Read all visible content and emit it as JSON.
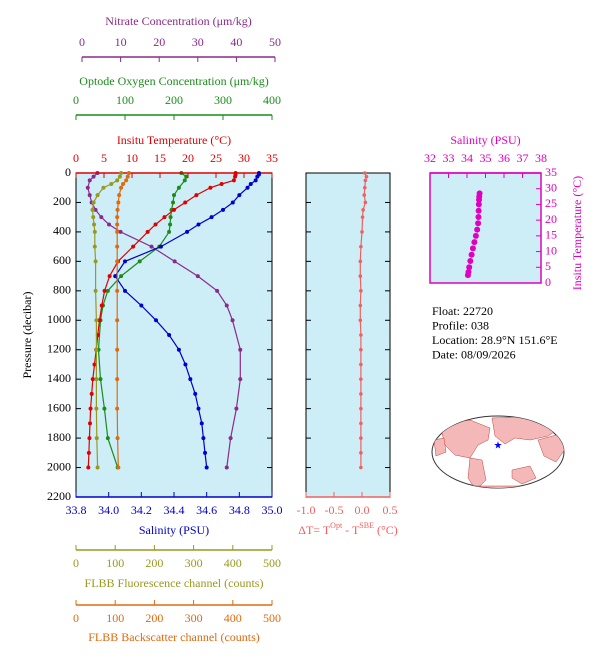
{
  "chart_data": [
    {
      "type": "profile",
      "ylabel": "Pressure (decibar)",
      "ylim": [
        0,
        2200
      ],
      "yticks": [
        0,
        200,
        400,
        600,
        800,
        1000,
        1200,
        1400,
        1600,
        1800,
        2000,
        2200
      ],
      "axes": [
        {
          "label": "Nitrate Concentration (μm/kg)",
          "color": "#8b2a8b",
          "xlim": [
            0,
            50
          ],
          "xticks": [
            0,
            10,
            20,
            30,
            40,
            50
          ],
          "pressure": [
            0,
            25,
            50,
            100,
            150,
            200,
            250,
            300,
            350,
            400,
            500,
            600,
            700,
            800,
            900,
            1000,
            1200,
            1400,
            1600,
            1800,
            2000
          ],
          "values": [
            4,
            3,
            2,
            1.5,
            2,
            2.5,
            3.5,
            5,
            7,
            10,
            18,
            24,
            30,
            35,
            37.5,
            39,
            41,
            41,
            40,
            38.5,
            37.5
          ]
        },
        {
          "label": "Optode Oxygen Concentration (μm/kg)",
          "color": "#1a8c1a",
          "xlim": [
            0,
            400
          ],
          "xticks": [
            0,
            100,
            200,
            300,
            400
          ],
          "pressure": [
            0,
            25,
            50,
            100,
            150,
            200,
            250,
            300,
            350,
            400,
            500,
            600,
            700,
            800,
            900,
            1000,
            1200,
            1400,
            1600,
            1800,
            2000
          ],
          "values": [
            215,
            225,
            222,
            210,
            200,
            198,
            195,
            193,
            192,
            190,
            170,
            130,
            92,
            65,
            55,
            50,
            46,
            50,
            58,
            65,
            85
          ]
        },
        {
          "label": "Insitu Temperature (°C)",
          "color": "#e00000",
          "xlim": [
            0,
            35
          ],
          "xticks": [
            0,
            5,
            10,
            15,
            20,
            25,
            30,
            35
          ],
          "pressure": [
            0,
            10,
            25,
            50,
            75,
            100,
            150,
            200,
            250,
            300,
            350,
            400,
            500,
            600,
            700,
            800,
            900,
            1000,
            1100,
            1200,
            1300,
            1400,
            1500,
            1600,
            1700,
            1800,
            1900,
            2000
          ],
          "values": [
            28.5,
            28.5,
            28.4,
            28.2,
            26,
            24,
            21.5,
            19.5,
            17.5,
            15.8,
            14.2,
            12.8,
            10.2,
            7.5,
            6,
            5.1,
            4.6,
            4.2,
            3.9,
            3.6,
            3.3,
            3.0,
            2.8,
            2.6,
            2.5,
            2.4,
            2.3,
            2.2
          ]
        },
        {
          "label": "Salinity (PSU)",
          "color": "#0000cc",
          "xlim": [
            33.8,
            35.0
          ],
          "xticks": [
            33.8,
            {
              "value": 34,
              "label": "34.0"
            },
            34.2,
            34.4,
            34.6,
            34.8,
            {
              "value": 35,
              "label": "35.0"
            }
          ],
          "pressure": [
            0,
            10,
            25,
            50,
            75,
            100,
            150,
            200,
            250,
            300,
            350,
            400,
            500,
            600,
            700,
            800,
            900,
            1000,
            1100,
            1200,
            1300,
            1400,
            1500,
            1600,
            1700,
            1800,
            1900,
            2000
          ],
          "values": [
            34.92,
            34.92,
            34.91,
            34.9,
            34.87,
            34.85,
            34.8,
            34.76,
            34.7,
            34.63,
            34.55,
            34.48,
            34.32,
            34.1,
            34.04,
            34.1,
            34.2,
            34.29,
            34.37,
            34.43,
            34.47,
            34.5,
            34.53,
            34.55,
            34.57,
            34.58,
            34.59,
            34.6
          ]
        },
        {
          "label": "FLBB Fluorescence channel (counts)",
          "color": "#999922",
          "xlim": [
            0,
            500
          ],
          "xticks": [
            0,
            100,
            200,
            300,
            400,
            500
          ],
          "pressure": [
            0,
            25,
            50,
            75,
            100,
            150,
            200,
            250,
            300,
            350,
            400,
            500,
            600,
            800,
            1000,
            1200,
            1400,
            1600,
            1800,
            2000
          ],
          "values": [
            115,
            112,
            105,
            90,
            70,
            55,
            45,
            42,
            44,
            46,
            48,
            48,
            50,
            50,
            52,
            52,
            52,
            52,
            53,
            55
          ]
        },
        {
          "label": "FLBB Backscatter channel (counts)",
          "color": "#e06a10",
          "xlim": [
            0,
            500
          ],
          "xticks": [
            0,
            100,
            200,
            300,
            400,
            500
          ],
          "pressure": [
            0,
            25,
            50,
            75,
            100,
            150,
            200,
            250,
            300,
            350,
            400,
            500,
            600,
            800,
            1000,
            1200,
            1400,
            1600,
            1800,
            2000
          ],
          "values": [
            135,
            132,
            128,
            120,
            115,
            110,
            108,
            106,
            105,
            105,
            105,
            105,
            105,
            105,
            105,
            105,
            105,
            105,
            106,
            108
          ]
        }
      ]
    },
    {
      "type": "delta",
      "xlabel": [
        "ΔT= T",
        "Opt",
        " - T",
        "SBE",
        " (°C)"
      ],
      "color": "#f06060",
      "xlim": [
        -1.0,
        0.5
      ],
      "xticks": [
        {
          "value": -1,
          "label": "-1.0"
        },
        -0.5,
        {
          "value": 0,
          "label": "0.0"
        },
        0.5
      ],
      "ylim": [
        0,
        2200
      ],
      "yticks": [
        0,
        200,
        400,
        600,
        800,
        1000,
        1200,
        1400,
        1600,
        1800,
        2000,
        2200
      ],
      "pressure": [
        0,
        25,
        50,
        100,
        150,
        200,
        250,
        300,
        400,
        500,
        600,
        700,
        800,
        900,
        1000,
        1100,
        1200,
        1300,
        1400,
        1500,
        1600,
        1700,
        1800,
        1900,
        2000
      ],
      "values": [
        0.05,
        0.08,
        0.06,
        0.05,
        0.04,
        0.06,
        0.02,
        0.01,
        0,
        -0.02,
        -0.03,
        -0.03,
        -0.02,
        -0.03,
        -0.03,
        -0.02,
        -0.02,
        -0.02,
        -0.02,
        -0.02,
        -0.02,
        -0.02,
        -0.02,
        -0.02,
        -0.02
      ]
    },
    {
      "type": "ts",
      "color": "#e000c0",
      "xlabel": "Salinity (PSU)",
      "ylabel": "Insitu Temperature (°C)",
      "xlim": [
        32,
        38
      ],
      "xticks": [
        32,
        33,
        34,
        35,
        36,
        37,
        38
      ],
      "ylim": [
        0,
        35
      ],
      "yticks": [
        0,
        5,
        10,
        15,
        20,
        25,
        30,
        35
      ],
      "x": [
        34.05,
        34.08,
        34.12,
        34.18,
        34.25,
        34.32,
        34.4,
        34.48,
        34.55,
        34.6,
        34.62,
        34.63,
        34.64,
        34.65,
        34.66,
        34.68
      ],
      "values": [
        2.5,
        3.5,
        5,
        7,
        9,
        11,
        13,
        15,
        17,
        19,
        21,
        23,
        25,
        26.5,
        27.5,
        28.5
      ]
    }
  ],
  "info": [
    "Float:  22720",
    "Profile:  038",
    "Location:  28.9°N  151.6°E",
    "Date:  08/09/2026"
  ]
}
